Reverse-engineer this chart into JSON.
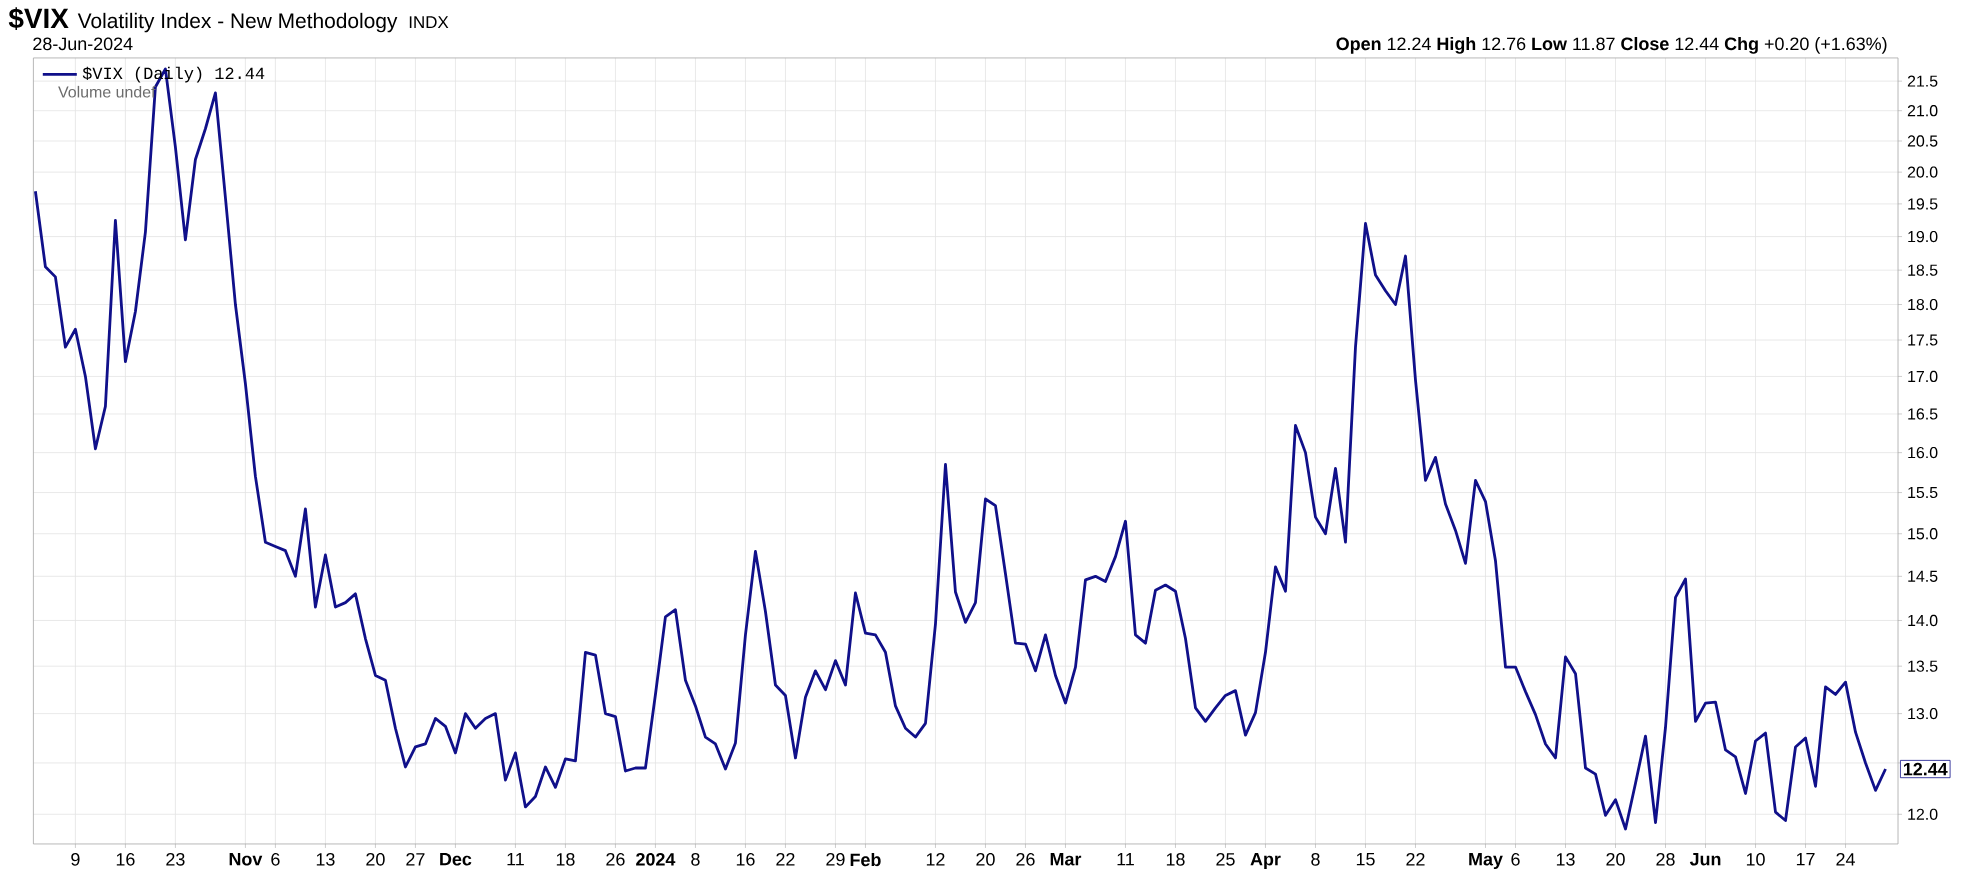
{
  "chart_data": {
    "type": "line",
    "title": "$VIX",
    "subtitle": "Volatility Index - New Methodology",
    "annotations": [
      "INDX",
      "28-Jun-2024",
      "**Open** 12.24  **High** 12.76  **Low** 11.87  **Close** 12.44  **Chg** +0.20 (+1.63%)",
      "Volume undef",
      "12.44"
    ],
    "categories": [
      null,
      null,
      null,
      null,
      "9",
      null,
      null,
      null,
      null,
      "16",
      null,
      null,
      null,
      null,
      "23",
      null,
      null,
      null,
      null,
      null,
      null,
      "**Nov**",
      null,
      null,
      "6",
      null,
      null,
      null,
      null,
      "13",
      null,
      null,
      null,
      null,
      "20",
      null,
      null,
      null,
      "27",
      null,
      null,
      null,
      "**Dec**",
      null,
      null,
      null,
      null,
      null,
      "11",
      null,
      null,
      null,
      null,
      "18",
      null,
      null,
      null,
      null,
      "26",
      null,
      null,
      null,
      "**2024**",
      null,
      null,
      null,
      "8",
      null,
      null,
      null,
      null,
      "16",
      null,
      null,
      null,
      "22",
      null,
      null,
      null,
      null,
      "29",
      null,
      null,
      "**Feb**",
      null,
      null,
      null,
      null,
      null,
      null,
      "12",
      null,
      null,
      null,
      null,
      "20",
      null,
      null,
      null,
      "26",
      null,
      null,
      null,
      "**Mar**",
      null,
      null,
      null,
      null,
      null,
      "11",
      null,
      null,
      null,
      null,
      "18",
      null,
      null,
      null,
      null,
      "25",
      null,
      null,
      null,
      "**Apr**",
      null,
      null,
      null,
      null,
      "8",
      null,
      null,
      null,
      null,
      "15",
      null,
      null,
      null,
      null,
      "22",
      null,
      null,
      null,
      null,
      null,
      null,
      "**May**",
      null,
      null,
      "6",
      null,
      null,
      null,
      null,
      "13",
      null,
      null,
      null,
      null,
      "20",
      null,
      null,
      null,
      null,
      "28",
      null,
      null,
      null,
      "**Jun**",
      null,
      null,
      null,
      null,
      "10",
      null,
      null,
      null,
      null,
      "17",
      null,
      null,
      null,
      "24",
      null,
      null,
      null,
      null
    ],
    "series": [
      {
        "name": "$VIX (Daily) 12.44",
        "color": "#10108a",
        "values": [
          19.7,
          18.55,
          18.4,
          17.4,
          17.65,
          17.0,
          16.05,
          16.6,
          19.25,
          17.2,
          17.9,
          19.07,
          21.4,
          21.71,
          20.4,
          18.95,
          20.2,
          20.7,
          21.3,
          19.6,
          18.0,
          16.9,
          15.7,
          14.9,
          14.85,
          14.8,
          14.5,
          15.3,
          14.15,
          14.75,
          14.15,
          14.2,
          14.3,
          13.8,
          13.4,
          13.35,
          12.85,
          12.46,
          12.66,
          12.69,
          12.95,
          12.87,
          12.6,
          13.0,
          12.85,
          12.95,
          13.0,
          12.33,
          12.6,
          12.07,
          12.17,
          12.46,
          12.26,
          12.54,
          12.52,
          13.65,
          13.62,
          13.0,
          12.97,
          12.42,
          12.45,
          12.45,
          13.2,
          14.04,
          14.12,
          13.35,
          13.08,
          12.76,
          12.69,
          12.44,
          12.7,
          13.84,
          14.79,
          14.1,
          13.3,
          13.19,
          12.55,
          13.17,
          13.45,
          13.25,
          13.56,
          13.3,
          14.31,
          13.86,
          13.84,
          13.65,
          13.08,
          12.85,
          12.76,
          12.9,
          13.96,
          15.85,
          14.32,
          13.98,
          14.2,
          15.42,
          15.34,
          14.53,
          13.75,
          13.74,
          13.45,
          13.84,
          13.4,
          13.11,
          13.49,
          14.46,
          14.5,
          14.44,
          14.73,
          15.15,
          13.84,
          13.75,
          14.34,
          14.4,
          14.33,
          13.8,
          13.06,
          12.92,
          13.06,
          13.19,
          13.24,
          12.78,
          13.01,
          13.65,
          14.61,
          14.33,
          16.35,
          16.0,
          15.2,
          15.0,
          15.8,
          14.9,
          17.4,
          19.2,
          18.43,
          18.2,
          18.0,
          18.71,
          16.95,
          15.65,
          15.94,
          15.36,
          15.04,
          14.65,
          15.65,
          15.39,
          14.68,
          13.49,
          13.49,
          13.23,
          12.99,
          12.69,
          12.55,
          13.6,
          13.42,
          12.45,
          12.39,
          11.99,
          12.14,
          11.86,
          12.3,
          12.77,
          11.92,
          12.86,
          14.26,
          14.47,
          12.92,
          13.11,
          13.12,
          12.63,
          12.56,
          12.2,
          12.72,
          12.8,
          12.02,
          11.94,
          12.66,
          12.75,
          12.27,
          13.28,
          13.2,
          13.33,
          12.81,
          12.5,
          12.23,
          12.44
        ]
      }
    ],
    "log": true,
    "ylim": [
      11.72,
      21.9
    ],
    "yticks": [
      {
        "value": 12,
        "label": "12.0"
      },
      {
        "value": 12.5,
        "label": null
      },
      {
        "value": 13,
        "label": "13.0"
      },
      13.5,
      {
        "value": 14,
        "label": "14.0"
      },
      14.5,
      {
        "value": 15,
        "label": "15.0"
      },
      15.5,
      {
        "value": 16,
        "label": "16.0"
      },
      16.5,
      {
        "value": 17,
        "label": "17.0"
      },
      17.5,
      {
        "value": 18,
        "label": "18.0"
      },
      18.5,
      {
        "value": 19,
        "label": "19.0"
      },
      19.5,
      {
        "value": 20,
        "label": "20.0"
      },
      20.5,
      {
        "value": 21,
        "label": "21.0"
      },
      21.5
    ],
    "grid": true,
    "legend": "top left",
    "marker": "none"
  }
}
